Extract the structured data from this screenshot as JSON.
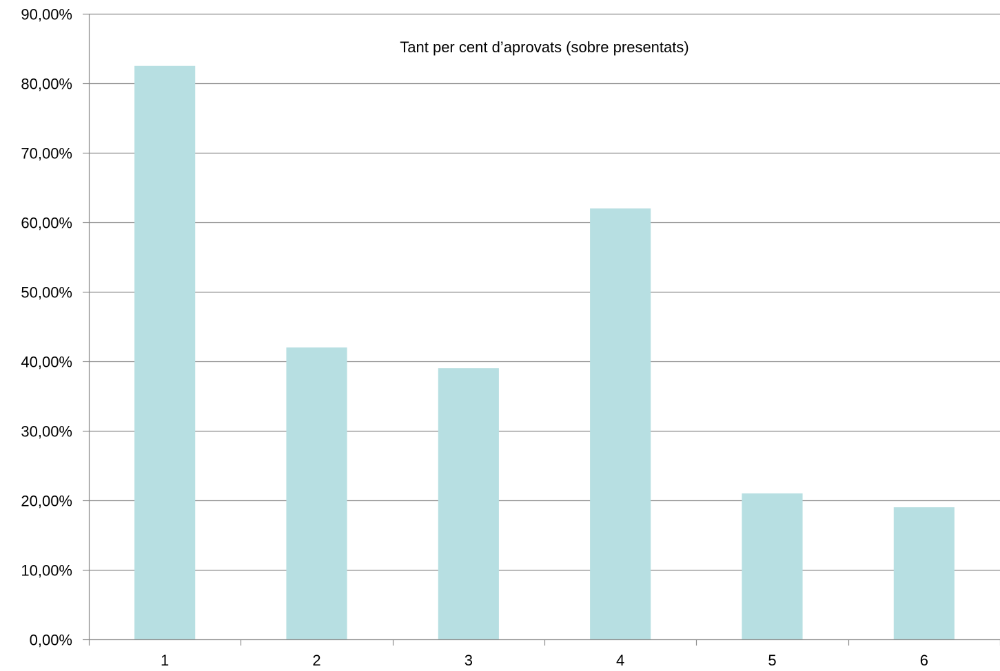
{
  "chart_data": {
    "type": "bar",
    "title": "Tant per cent d’aprovats (sobre presentats)",
    "categories": [
      "1",
      "2",
      "3",
      "4",
      "5",
      "6"
    ],
    "values": [
      82.5,
      42.0,
      39.0,
      62.0,
      21.0,
      19.0
    ],
    "xlabel": "",
    "ylabel": "",
    "ylim": [
      0,
      90
    ],
    "y_ticks": [
      0,
      10,
      20,
      30,
      40,
      50,
      60,
      70,
      80,
      90
    ],
    "y_tick_labels": [
      "0,00%",
      "10,00%",
      "20,00%",
      "30,00%",
      "40,00%",
      "50,00%",
      "60,00%",
      "70,00%",
      "80,00%",
      "90,00%"
    ],
    "grid": true,
    "legend": "none",
    "colors": {
      "bar": "#b7dfe2",
      "grid": "#8c8c8c",
      "axis": "#8c8c8c",
      "text": "#000000"
    }
  }
}
